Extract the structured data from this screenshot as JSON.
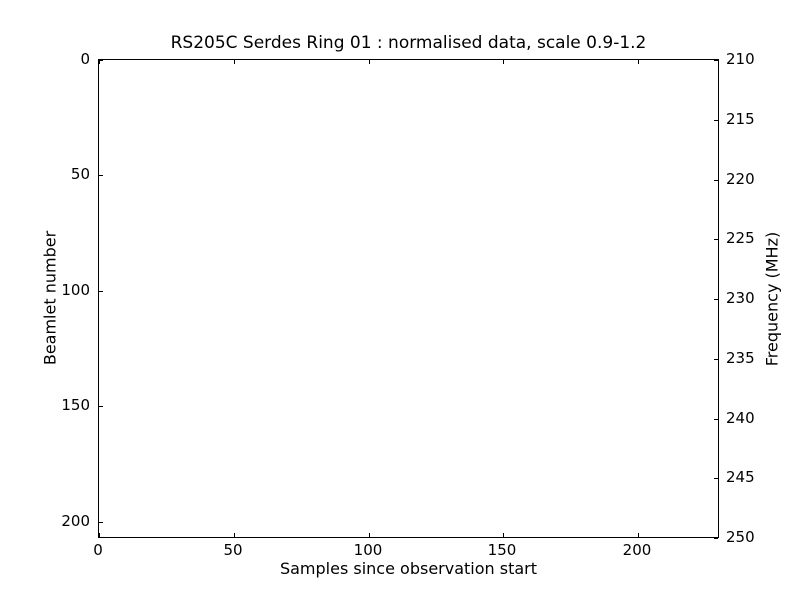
{
  "figure": {
    "background": "#ffffff",
    "foreground": "#000000"
  },
  "chart_data": {
    "type": "heatmap",
    "title": "RS205C Serdes Ring 01 : normalised data, scale 0.9-1.2",
    "xlabel": "Samples since observation start",
    "ylabel_left": "Beamlet number",
    "ylabel_right": "Frequency (MHz)",
    "xlim": [
      0,
      230
    ],
    "ylim_left": [
      0,
      207
    ],
    "y_left_inverted": true,
    "ylim_right": [
      210,
      250
    ],
    "xticks": [
      0,
      50,
      100,
      150,
      200
    ],
    "yticks_left": [
      0,
      50,
      100,
      150,
      200
    ],
    "yticks_right": [
      210,
      215,
      220,
      225,
      230,
      235,
      240,
      245,
      250
    ],
    "tick_direction": "in",
    "grid": false,
    "legend": null,
    "plot_area_empty": true,
    "values": []
  }
}
